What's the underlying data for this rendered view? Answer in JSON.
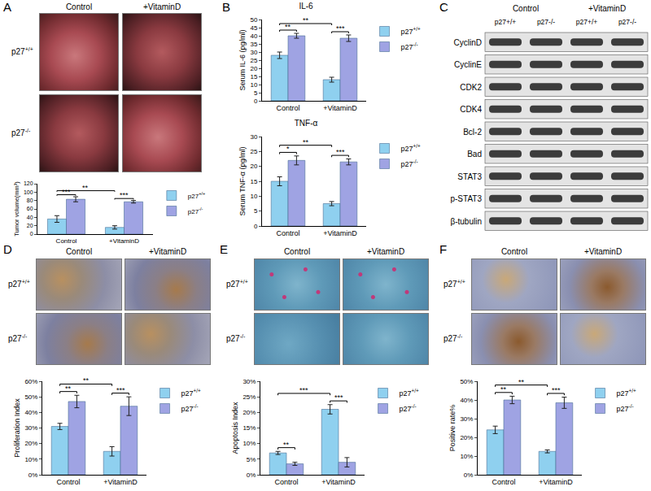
{
  "figure": {
    "panel_labels": [
      "A",
      "B",
      "C",
      "D",
      "E",
      "F"
    ],
    "photo_columns": [
      "Control",
      "+VitaminD"
    ],
    "photo_rows": [
      "p27+/+",
      "p27-/-"
    ],
    "blot": {
      "columns": [
        "Control",
        "+VitaminD"
      ],
      "lanes": [
        "p27+/+",
        "p27-/-",
        "p27+/+",
        "p27-/-"
      ],
      "proteins": [
        "CyclinD",
        "CyclinE",
        "CDK2",
        "CDK4",
        "Bcl-2",
        "Bad",
        "STAT3",
        "p-STAT3",
        "β-tubulin"
      ]
    }
  },
  "chart_data": [
    {
      "type": "bar",
      "ylabel": "Tumor volume(mm³)",
      "categories": [
        "Control",
        "+VitaminD"
      ],
      "series": [
        {
          "name": "p27+/+",
          "color": "#8fd0ef",
          "values": [
            36,
            16
          ],
          "error": [
            8,
            4
          ]
        },
        {
          "name": "p27-/-",
          "color": "#9fa3e3",
          "values": [
            83,
            77
          ],
          "error": [
            6,
            3
          ]
        }
      ],
      "ylim": [
        0,
        120
      ],
      "yticks": [
        0,
        20,
        40,
        60,
        80,
        100,
        120
      ],
      "grid": false,
      "legend": "right",
      "significance": [
        {
          "between": [
            [
              "Control",
              "p27+/+"
            ],
            [
              "Control",
              "p27-/-"
            ]
          ],
          "text": "***"
        },
        {
          "between": [
            [
              "+VitaminD",
              "p27+/+"
            ],
            [
              "+VitaminD",
              "p27-/-"
            ]
          ],
          "text": "***"
        },
        {
          "between": [
            [
              "Control",
              "p27+/+"
            ],
            [
              "+VitaminD",
              "p27+/+"
            ]
          ],
          "text": "**"
        }
      ]
    },
    {
      "type": "bar",
      "title": "IL-6",
      "ylabel": "Serum IL-6 (pg/ml)",
      "categories": [
        "Control",
        "+VitaminD"
      ],
      "series": [
        {
          "name": "p27+/+",
          "color": "#8fd0ef",
          "values": [
            28,
            13
          ],
          "error": [
            2,
            1.5
          ]
        },
        {
          "name": "p27-/-",
          "color": "#9fa3e3",
          "values": [
            40,
            38.5
          ],
          "error": [
            1.5,
            2
          ]
        }
      ],
      "ylim": [
        0,
        50
      ],
      "yticks": [
        0,
        5,
        10,
        15,
        20,
        25,
        30,
        35,
        40,
        45,
        50
      ],
      "grid": false,
      "legend": "right",
      "significance": [
        {
          "between": [
            [
              "Control",
              "p27+/+"
            ],
            [
              "Control",
              "p27-/-"
            ]
          ],
          "text": "**"
        },
        {
          "between": [
            [
              "+VitaminD",
              "p27+/+"
            ],
            [
              "+VitaminD",
              "p27-/-"
            ]
          ],
          "text": "***"
        },
        {
          "between": [
            [
              "Control",
              "p27+/+"
            ],
            [
              "+VitaminD",
              "p27+/+"
            ]
          ],
          "text": "**"
        }
      ]
    },
    {
      "type": "bar",
      "title": "TNF-α",
      "ylabel": "Serum TNF-α (pg/ml)",
      "categories": [
        "Control",
        "+VitaminD"
      ],
      "series": [
        {
          "name": "p27+/+",
          "color": "#8fd0ef",
          "values": [
            15,
            7.5
          ],
          "error": [
            1.5,
            0.7
          ]
        },
        {
          "name": "p27-/-",
          "color": "#9fa3e3",
          "values": [
            22,
            21.5
          ],
          "error": [
            1.5,
            1
          ]
        }
      ],
      "ylim": [
        0,
        30
      ],
      "yticks": [
        0,
        5,
        10,
        15,
        20,
        25,
        30
      ],
      "grid": false,
      "legend": "right",
      "significance": [
        {
          "between": [
            [
              "Control",
              "p27+/+"
            ],
            [
              "Control",
              "p27-/-"
            ]
          ],
          "text": "*"
        },
        {
          "between": [
            [
              "+VitaminD",
              "p27+/+"
            ],
            [
              "+VitaminD",
              "p27-/-"
            ]
          ],
          "text": "***"
        },
        {
          "between": [
            [
              "Control",
              "p27+/+"
            ],
            [
              "+VitaminD",
              "p27+/+"
            ]
          ],
          "text": "**"
        }
      ]
    },
    {
      "type": "bar",
      "ylabel": "Proliferation Index",
      "categories": [
        "Control",
        "+VitaminD"
      ],
      "series": [
        {
          "name": "p27+/+",
          "color": "#8fd0ef",
          "values": [
            31,
            15
          ],
          "error": [
            2,
            3
          ]
        },
        {
          "name": "p27-/-",
          "color": "#9fa3e3",
          "values": [
            47,
            44
          ],
          "error": [
            4,
            6
          ]
        }
      ],
      "ylim": [
        0,
        60
      ],
      "yticks": [
        {
          "value": 0,
          "label": "0%"
        },
        {
          "value": 10,
          "label": "10%"
        },
        {
          "value": 20,
          "label": "20%"
        },
        {
          "value": 30,
          "label": "30%"
        },
        {
          "value": 40,
          "label": "40%"
        },
        {
          "value": 50,
          "label": "50%"
        },
        {
          "value": 60,
          "label": "60%"
        }
      ],
      "grid": false,
      "legend": "right",
      "significance": [
        {
          "between": [
            [
              "Control",
              "p27+/+"
            ],
            [
              "Control",
              "p27-/-"
            ]
          ],
          "text": "**"
        },
        {
          "between": [
            [
              "+VitaminD",
              "p27+/+"
            ],
            [
              "+VitaminD",
              "p27-/-"
            ]
          ],
          "text": "***"
        },
        {
          "between": [
            [
              "Control",
              "p27+/+"
            ],
            [
              "+VitaminD",
              "p27+/+"
            ]
          ],
          "text": "**"
        }
      ]
    },
    {
      "type": "bar",
      "ylabel": "Apoptosis Index",
      "categories": [
        "Control",
        "+VitaminD"
      ],
      "series": [
        {
          "name": "p27+/+",
          "color": "#8fd0ef",
          "values": [
            7,
            21
          ],
          "error": [
            0.5,
            1.5
          ]
        },
        {
          "name": "p27-/-",
          "color": "#9fa3e3",
          "values": [
            3.5,
            4
          ],
          "error": [
            0.5,
            1.5
          ]
        }
      ],
      "ylim": [
        0,
        30
      ],
      "yticks": [
        {
          "value": 0,
          "label": "0%"
        },
        {
          "value": 5,
          "label": "5%"
        },
        {
          "value": 10,
          "label": "10%"
        },
        {
          "value": 15,
          "label": "15%"
        },
        {
          "value": 20,
          "label": "20%"
        },
        {
          "value": 25,
          "label": "25%"
        },
        {
          "value": 30,
          "label": "30%"
        }
      ],
      "grid": false,
      "legend": "right",
      "significance": [
        {
          "between": [
            [
              "Control",
              "p27+/+"
            ],
            [
              "Control",
              "p27-/-"
            ]
          ],
          "text": "**"
        },
        {
          "between": [
            [
              "+VitaminD",
              "p27+/+"
            ],
            [
              "+VitaminD",
              "p27-/-"
            ]
          ],
          "text": "***"
        },
        {
          "between": [
            [
              "Control",
              "p27+/+"
            ],
            [
              "+VitaminD",
              "p27+/+"
            ]
          ],
          "text": "***"
        }
      ]
    },
    {
      "type": "bar",
      "ylabel": "Positive rate%",
      "categories": [
        "Control",
        "+VitaminD"
      ],
      "series": [
        {
          "name": "p27+/+",
          "color": "#8fd0ef",
          "values": [
            24,
            12.5
          ],
          "error": [
            2,
            0.8
          ]
        },
        {
          "name": "p27-/-",
          "color": "#9fa3e3",
          "values": [
            40,
            38.5
          ],
          "error": [
            2,
            3
          ]
        }
      ],
      "ylim": [
        0,
        50
      ],
      "yticks": [
        {
          "value": 0,
          "label": "0%"
        },
        {
          "value": 10,
          "label": "10%"
        },
        {
          "value": 20,
          "label": "20%"
        },
        {
          "value": 30,
          "label": "30%"
        },
        {
          "value": 40,
          "label": "40%"
        },
        {
          "value": 50,
          "label": "50%"
        }
      ],
      "grid": false,
      "legend": "right",
      "significance": [
        {
          "between": [
            [
              "Control",
              "p27+/+"
            ],
            [
              "Control",
              "p27-/-"
            ]
          ],
          "text": "**"
        },
        {
          "between": [
            [
              "+VitaminD",
              "p27+/+"
            ],
            [
              "+VitaminD",
              "p27-/-"
            ]
          ],
          "text": "***"
        },
        {
          "between": [
            [
              "Control",
              "p27+/+"
            ],
            [
              "+VitaminD",
              "p27+/+"
            ]
          ],
          "text": "**"
        }
      ]
    }
  ]
}
